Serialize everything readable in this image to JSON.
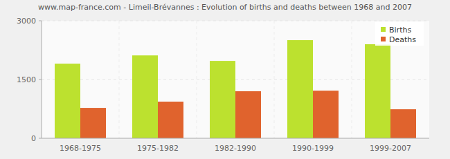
{
  "chart_data": {
    "type": "bar",
    "title": "www.map-france.com - Limeil-Brévannes : Evolution of births and deaths between 1968 and 2007",
    "categories": [
      "1968-1975",
      "1975-1982",
      "1982-1990",
      "1990-1999",
      "1999-2007"
    ],
    "series": [
      {
        "name": "Births",
        "color": "#bce12f",
        "values": [
          1905,
          2115,
          1975,
          2505,
          2400
        ]
      },
      {
        "name": "Deaths",
        "color": "#e0632d",
        "values": [
          775,
          935,
          1200,
          1215,
          740
        ]
      }
    ],
    "ylim": [
      0,
      3000
    ],
    "yticks": [
      0,
      1500,
      3000
    ],
    "grid": true,
    "legend": "upper right"
  }
}
